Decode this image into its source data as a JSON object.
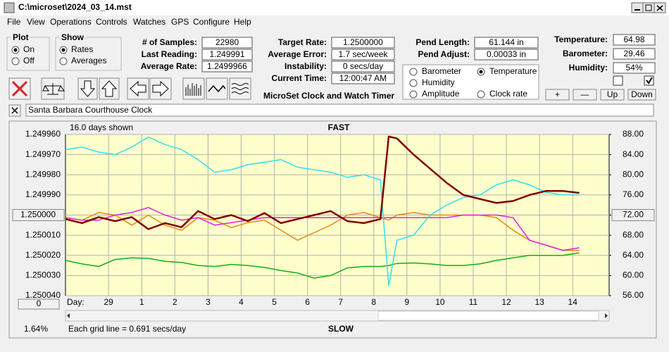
{
  "window": {
    "title": "C:\\microset\\2024_03_14.mst"
  },
  "menu": [
    "File",
    "View",
    "Operations",
    "Controls",
    "Watches",
    "GPS",
    "Configure",
    "Help"
  ],
  "plot_group": {
    "title": "Plot",
    "options": [
      "On",
      "Off"
    ],
    "selected": 0
  },
  "show_group": {
    "title": "Show",
    "options": [
      "Rates",
      "Averages"
    ],
    "selected": 0
  },
  "fields": [
    {
      "label": "# of Samples:",
      "value": "22980"
    },
    {
      "label": "Last Reading:",
      "value": "1.249991"
    },
    {
      "label": "Average Rate:",
      "value": "1.2499966"
    },
    {
      "label": "Target Rate:",
      "value": "1.2500000"
    },
    {
      "label": "Average Error:",
      "value": "1.7 sec/week"
    },
    {
      "label": "Instability:",
      "value": "0 secs/day"
    },
    {
      "label": "Current Time:",
      "value": "12:00:47 AM"
    },
    {
      "label": "Pend Length:",
      "value": "61.144 in"
    },
    {
      "label": "Pend Adjust:",
      "value": "0.00033 in"
    },
    {
      "label": "Temperature:",
      "value": "64.98"
    },
    {
      "label": "Barometer:",
      "value": "29.46"
    },
    {
      "label": "Humidity:",
      "value": "54%"
    }
  ],
  "app_title": "MicroSet Clock and Watch Timer",
  "buttons": [
    "+",
    "—",
    "Up",
    "Down"
  ],
  "clock_name": "Santa Barbara Courthouse Clock",
  "status": {
    "zoom": "0",
    "percent": "1.64%"
  },
  "chart_data": {
    "type": "line",
    "annotations": [
      "16.0 days shown",
      "FAST",
      "SLOW",
      "Each grid line = 0.691 secs/day"
    ],
    "x_label": "Day:",
    "x": [
      0,
      0.5,
      1,
      1.5,
      2,
      2.5,
      3,
      3.5,
      4,
      4.5,
      5,
      5.5,
      6,
      6.5,
      7,
      7.5,
      8,
      8.5,
      9,
      9.5,
      9.75,
      10,
      10.5,
      11,
      11.5,
      12,
      12.5,
      13,
      13.5,
      14,
      14.5,
      15,
      15.5
    ],
    "xlim": [
      0,
      16.4
    ],
    "xticks": [
      {
        "value": 1.3,
        "label": "29"
      },
      {
        "value": 2.3,
        "label": "1"
      },
      {
        "value": 3.3,
        "label": "2"
      },
      {
        "value": 4.3,
        "label": "3"
      },
      {
        "value": 5.3,
        "label": "4"
      },
      {
        "value": 6.3,
        "label": "5"
      },
      {
        "value": 7.3,
        "label": "6"
      },
      {
        "value": 8.3,
        "label": "7"
      },
      {
        "value": 9.3,
        "label": "8"
      },
      {
        "value": 10.3,
        "label": "9"
      },
      {
        "value": 11.3,
        "label": "10"
      },
      {
        "value": 12.3,
        "label": "11"
      },
      {
        "value": 13.3,
        "label": "12"
      },
      {
        "value": 14.3,
        "label": "13"
      },
      {
        "value": 15.3,
        "label": "14"
      }
    ],
    "ylim": [
      1.25004,
      1.24996
    ],
    "yticks": [
      {
        "value": 1.24996,
        "label": "1.249960"
      },
      {
        "value": 1.24997,
        "label": "1.249970"
      },
      {
        "value": 1.24998,
        "label": "1.249980"
      },
      {
        "value": 1.24999,
        "label": "1.249990"
      },
      {
        "value": 1.25,
        "label": "1.250000"
      },
      {
        "value": 1.25001,
        "label": "1.250010"
      },
      {
        "value": 1.25002,
        "label": "1.250020"
      },
      {
        "value": 1.25003,
        "label": "1.250030"
      },
      {
        "value": 1.25004,
        "label": "1.250040"
      }
    ],
    "y2lim": [
      56,
      88
    ],
    "y2ticks": [
      {
        "value": 88,
        "label": "88.00"
      },
      {
        "value": 84,
        "label": "84.00"
      },
      {
        "value": 80,
        "label": "80.00"
      },
      {
        "value": 76,
        "label": "76.00"
      },
      {
        "value": 72,
        "label": "72.00"
      },
      {
        "value": 68,
        "label": "68.00"
      },
      {
        "value": 64,
        "label": "64.00"
      },
      {
        "value": 60,
        "label": "60.00"
      },
      {
        "value": 56,
        "label": "56.00"
      }
    ],
    "grid": true,
    "legend_selected": 1,
    "series": [
      {
        "name": "Barometer",
        "color": "#e88a10",
        "axis": "y2",
        "values": [
          71.5,
          71,
          72.5,
          72,
          70,
          72,
          70,
          69,
          71.5,
          71,
          69.5,
          70.5,
          71,
          69,
          67,
          68.5,
          70,
          72,
          72.5,
          71.5,
          71,
          72,
          72.5,
          72,
          72,
          72,
          72,
          71.5,
          69,
          67,
          66,
          65,
          65
        ]
      },
      {
        "name": "Temperature",
        "color": "#10b010",
        "axis": "y2",
        "values": [
          63,
          62.3,
          61.8,
          63.2,
          63.5,
          63.4,
          62.8,
          62.6,
          62,
          61.8,
          62.2,
          62,
          61.6,
          61,
          60.5,
          59.5,
          60,
          61.5,
          61.8,
          61.8,
          62,
          62.4,
          62.5,
          62.3,
          62,
          62,
          62.3,
          63,
          63.5,
          64,
          64,
          64,
          64.5
        ]
      },
      {
        "name": "Humidity",
        "color": "#e020e0",
        "axis": "y2",
        "values": [
          71.5,
          71,
          71,
          72,
          72.5,
          73.5,
          72,
          71,
          71.5,
          70,
          70.5,
          71,
          71.5,
          71.5,
          71.5,
          71.5,
          71.5,
          71.5,
          71.5,
          71.5,
          71.5,
          71.5,
          71.5,
          71.5,
          71.5,
          72,
          72,
          72,
          71.5,
          67,
          66,
          65,
          65.5
        ]
      },
      {
        "name": "Amplitude",
        "color": "#30e0f0",
        "axis": "y2",
        "values": [
          85,
          85.5,
          84.5,
          84,
          85.5,
          87.5,
          86,
          85,
          83,
          80.5,
          81,
          82,
          82.5,
          83,
          81.5,
          81,
          80.5,
          79.5,
          80,
          79,
          58,
          67,
          68,
          72,
          74,
          75.5,
          76,
          78,
          79,
          78,
          76.5,
          76,
          76
        ]
      },
      {
        "name": "Clock rate",
        "color": "#800000",
        "axis": "y",
        "values": [
          1.250002,
          1.250004,
          1.250001,
          1.250003,
          1.250001,
          1.250007,
          1.250004,
          1.250006,
          1.249998,
          1.250002,
          1.25,
          1.250003,
          1.249999,
          1.250004,
          1.250002,
          1.25,
          1.249998,
          1.250003,
          1.250004,
          1.250002,
          1.249961,
          1.249962,
          1.24997,
          1.249977,
          1.249984,
          1.24999,
          1.249992,
          1.249994,
          1.249993,
          1.24999,
          1.249988,
          1.249988,
          1.249989
        ]
      }
    ]
  }
}
